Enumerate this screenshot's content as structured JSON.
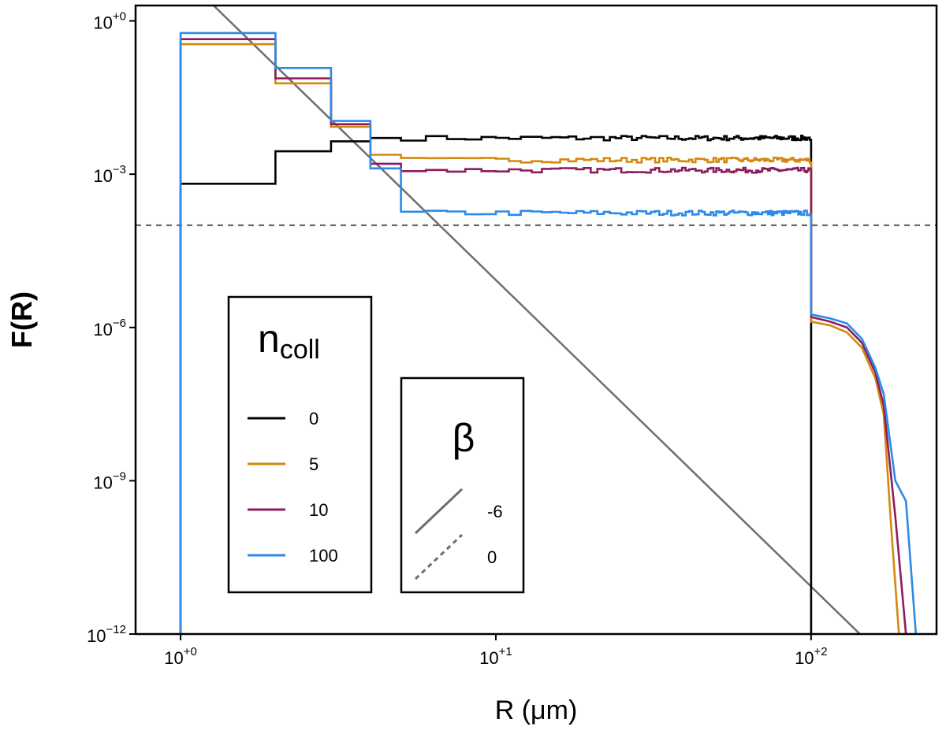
{
  "chart_data": {
    "type": "line",
    "xscale": "log",
    "yscale": "log",
    "xlim": [
      0.72,
      250
    ],
    "ylim": [
      1e-12,
      2
    ],
    "xlabel": "R (μm)",
    "ylabel": "F(R)",
    "x_ticks": [
      {
        "value": 1,
        "base": "10",
        "exp": "+0"
      },
      {
        "value": 10,
        "base": "10",
        "exp": "+1"
      },
      {
        "value": 100,
        "base": "10",
        "exp": "+2"
      }
    ],
    "y_ticks": [
      {
        "value": 1,
        "base": "10",
        "exp": "+0"
      },
      {
        "value": 0.001,
        "base": "10",
        "exp": "−3"
      },
      {
        "value": 1e-06,
        "base": "10",
        "exp": "−6"
      },
      {
        "value": 1e-09,
        "base": "10",
        "exp": "−9"
      },
      {
        "value": 1e-12,
        "base": "10",
        "exp": "−12"
      }
    ],
    "legend_ncoll": {
      "title_main": "n",
      "title_sub": "coll",
      "placement": "lower-left",
      "entries": [
        {
          "label": "0",
          "color": "#000000"
        },
        {
          "label": "5",
          "color": "#d4880e"
        },
        {
          "label": "10",
          "color": "#8b1d5e"
        },
        {
          "label": "100",
          "color": "#2c8ae8"
        }
      ]
    },
    "legend_beta": {
      "title": "β",
      "placement": "lower-center",
      "entries": [
        {
          "label": "-6",
          "style": "solid",
          "color": "#6e6e6e"
        },
        {
          "label": "0",
          "style": "dashed",
          "color": "#6e6e6e"
        }
      ]
    },
    "reference_lines": [
      {
        "name": "beta-minus-6",
        "type": "power_law",
        "slope": -6,
        "x0": 1,
        "y0": 8.5,
        "color": "#6e6e6e",
        "style": "solid"
      },
      {
        "name": "beta-0",
        "type": "horizontal",
        "y": 0.0001,
        "color": "#6e6e6e",
        "style": "dashed"
      }
    ],
    "series": [
      {
        "name": "0",
        "color": "#000000",
        "bins_low": [
          [
            1,
            2,
            0.00065
          ],
          [
            2,
            3,
            0.0028
          ],
          [
            3,
            4,
            0.0044
          ],
          [
            4,
            5,
            0.0051
          ]
        ],
        "plateau": {
          "from": 5,
          "to": 100,
          "level": 0.0051
        },
        "cutoff_x": 100
      },
      {
        "name": "5",
        "color": "#d4880e",
        "bins_low": [
          [
            1,
            2,
            0.35
          ],
          [
            2,
            3,
            0.06
          ],
          [
            3,
            4,
            0.0085
          ],
          [
            4,
            5,
            0.0024
          ]
        ],
        "plateau": {
          "from": 5,
          "to": 100,
          "level": 0.0019
        },
        "tail": [
          [
            100,
            1.3e-06
          ],
          [
            115,
            1.1e-06
          ],
          [
            130,
            8e-07
          ],
          [
            145,
            4e-07
          ],
          [
            160,
            1e-07
          ],
          [
            170,
            2e-08
          ],
          [
            180,
            1e-10
          ],
          [
            190,
            1e-12
          ]
        ]
      },
      {
        "name": "10",
        "color": "#8b1d5e",
        "bins_low": [
          [
            1,
            2,
            0.44
          ],
          [
            2,
            3,
            0.075
          ],
          [
            3,
            4,
            0.0095
          ],
          [
            4,
            5,
            0.0016
          ]
        ],
        "plateau": {
          "from": 5,
          "to": 100,
          "level": 0.0012
        },
        "tail": [
          [
            100,
            1.6e-06
          ],
          [
            115,
            1.3e-06
          ],
          [
            130,
            1e-06
          ],
          [
            145,
            5e-07
          ],
          [
            160,
            1.3e-07
          ],
          [
            170,
            3e-08
          ],
          [
            185,
            2e-10
          ],
          [
            200,
            1e-12
          ]
        ]
      },
      {
        "name": "100",
        "color": "#2c8ae8",
        "bins_low": [
          [
            1,
            2,
            0.58
          ],
          [
            2,
            3,
            0.12
          ],
          [
            3,
            4,
            0.011
          ],
          [
            4,
            5,
            0.0013
          ]
        ],
        "plateau": {
          "from": 5,
          "to": 100,
          "level": 0.000175
        },
        "tail": [
          [
            100,
            1.8e-06
          ],
          [
            115,
            1.5e-06
          ],
          [
            130,
            1.2e-06
          ],
          [
            145,
            6e-07
          ],
          [
            160,
            1.6e-07
          ],
          [
            170,
            5e-08
          ],
          [
            185,
            1e-09
          ],
          [
            200,
            4e-10
          ],
          [
            215,
            1e-12
          ]
        ]
      }
    ]
  }
}
